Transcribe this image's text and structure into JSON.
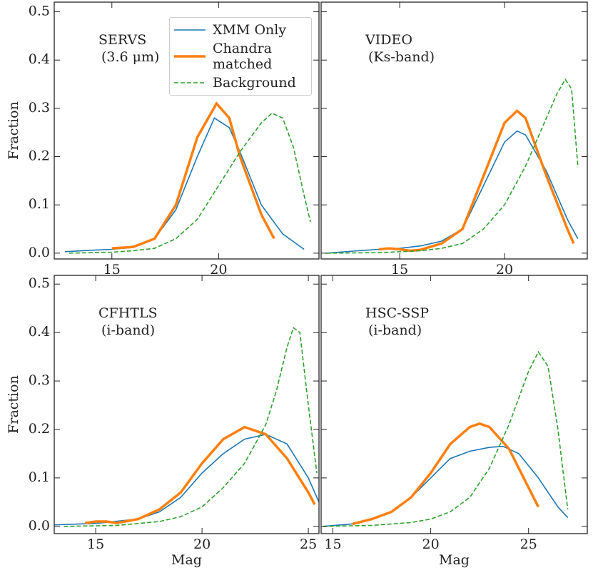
{
  "chart_data": [
    {
      "type": "line",
      "annotation": [
        "SERVS",
        "(3.6 μm)"
      ],
      "ylabel": "Fraction",
      "legend": "upper right",
      "xlim": [
        12.3,
        24.7
      ],
      "ylim": [
        -0.012,
        0.52
      ],
      "xticks": [
        15,
        20
      ],
      "yticks": [
        {
          "value": 0.0,
          "label": "0.0"
        },
        0.1,
        0.2,
        0.3,
        0.4,
        0.5
      ],
      "show_yticklabels": true,
      "series": [
        {
          "name": "XMM Only",
          "color": "#1f77b4",
          "linewidth": 1.6,
          "linestyle": "solid",
          "x": [
            12.8,
            14,
            15,
            16,
            17,
            18,
            19,
            19.8,
            20.5,
            21,
            22,
            23,
            24
          ],
          "values": [
            0.003,
            0.006,
            0.008,
            0.012,
            0.03,
            0.09,
            0.2,
            0.28,
            0.26,
            0.21,
            0.1,
            0.04,
            0.008
          ]
        },
        {
          "name": "Chandra matched",
          "color": "#ff7f0e",
          "linewidth": 3.5,
          "linestyle": "solid",
          "x": [
            15,
            16,
            17,
            18,
            19,
            19.9,
            20.5,
            21,
            22,
            22.6
          ],
          "values": [
            0.01,
            0.013,
            0.03,
            0.1,
            0.24,
            0.31,
            0.28,
            0.2,
            0.08,
            0.03
          ]
        },
        {
          "name": "Background",
          "color": "#2ca02c",
          "linewidth": 1.6,
          "linestyle": "dashed",
          "x": [
            13,
            15,
            16,
            17,
            18,
            19,
            20,
            21,
            22,
            22.5,
            23,
            23.5,
            24,
            24.3
          ],
          "values": [
            0,
            0.002,
            0.005,
            0.01,
            0.03,
            0.07,
            0.14,
            0.21,
            0.27,
            0.29,
            0.28,
            0.22,
            0.12,
            0.065
          ]
        }
      ]
    },
    {
      "type": "line",
      "annotation": [
        "VIDEO",
        "(Ks-band)"
      ],
      "xlim": [
        11.25,
        23.95
      ],
      "ylim": [
        -0.012,
        0.52
      ],
      "xticks": [
        15,
        20
      ],
      "yticks": [
        0,
        0.1,
        0.2,
        0.3,
        0.4,
        0.5
      ],
      "show_yticklabels": false,
      "series": [
        {
          "color": "#1f77b4",
          "linewidth": 1.6,
          "linestyle": "solid",
          "x": [
            11.5,
            13,
            14,
            15,
            16,
            17,
            18,
            19,
            20,
            20.6,
            21,
            22,
            23,
            23.5
          ],
          "values": [
            0,
            0.005,
            0.008,
            0.01,
            0.015,
            0.025,
            0.05,
            0.14,
            0.23,
            0.253,
            0.245,
            0.17,
            0.07,
            0.03
          ]
        },
        {
          "color": "#ff7f0e",
          "linewidth": 3.5,
          "linestyle": "solid",
          "x": [
            14,
            14.5,
            15,
            15.5,
            16,
            17,
            18,
            19,
            20,
            20.6,
            21,
            22,
            23,
            23.3
          ],
          "values": [
            0.008,
            0.01,
            0.008,
            0.005,
            0.007,
            0.02,
            0.05,
            0.16,
            0.27,
            0.295,
            0.28,
            0.16,
            0.05,
            0.02
          ]
        },
        {
          "color": "#2ca02c",
          "linewidth": 1.6,
          "linestyle": "dashed",
          "x": [
            11.5,
            14,
            16,
            17,
            18,
            19,
            20,
            21,
            22,
            22.5,
            22.9,
            23.2,
            23.5
          ],
          "values": [
            0,
            0.001,
            0.005,
            0.01,
            0.02,
            0.05,
            0.1,
            0.18,
            0.28,
            0.33,
            0.36,
            0.34,
            0.18
          ]
        }
      ]
    },
    {
      "type": "line",
      "annotation": [
        "CFHTLS",
        "(i-band)"
      ],
      "ylabel": "Fraction",
      "xlabel": "Mag",
      "xlim": [
        13.05,
        25.5
      ],
      "ylim": [
        -0.015,
        0.518
      ],
      "xticks": [
        15,
        20,
        25
      ],
      "yticks": [
        {
          "value": 0.0,
          "label": "0.0"
        },
        0.1,
        0.2,
        0.3,
        0.4,
        0.5
      ],
      "show_yticklabels": true,
      "series": [
        {
          "color": "#1f77b4",
          "linewidth": 1.6,
          "linestyle": "solid",
          "x": [
            13,
            15,
            17,
            18,
            19,
            20,
            21,
            22,
            23,
            24,
            25,
            25.5
          ],
          "values": [
            0.003,
            0.006,
            0.015,
            0.03,
            0.06,
            0.11,
            0.15,
            0.18,
            0.19,
            0.17,
            0.1,
            0.05
          ]
        },
        {
          "color": "#ff7f0e",
          "linewidth": 3.5,
          "linestyle": "solid",
          "x": [
            14.5,
            15,
            15.5,
            16,
            17,
            18,
            19,
            20,
            21,
            22,
            23,
            24,
            25,
            25.3
          ],
          "values": [
            0.007,
            0.01,
            0.01,
            0.007,
            0.015,
            0.035,
            0.07,
            0.13,
            0.18,
            0.205,
            0.19,
            0.14,
            0.07,
            0.045
          ]
        },
        {
          "color": "#2ca02c",
          "linewidth": 1.6,
          "linestyle": "dashed",
          "x": [
            13.5,
            16,
            18,
            19,
            20,
            21,
            22,
            23,
            23.5,
            24,
            24.3,
            24.6,
            25,
            25.4
          ],
          "values": [
            0,
            0.002,
            0.01,
            0.02,
            0.04,
            0.08,
            0.13,
            0.21,
            0.28,
            0.37,
            0.41,
            0.4,
            0.25,
            0.11
          ]
        }
      ]
    },
    {
      "type": "line",
      "annotation": [
        "HSC-SSP",
        "(i-band)"
      ],
      "xlabel": "Mag",
      "xlim": [
        14.4,
        28
      ],
      "ylim": [
        -0.015,
        0.518
      ],
      "xticks": [
        15,
        20,
        25
      ],
      "yticks": [
        0,
        0.1,
        0.2,
        0.3,
        0.4,
        0.5
      ],
      "show_yticklabels": false,
      "series": [
        {
          "color": "#1f77b4",
          "linewidth": 1.6,
          "linestyle": "solid",
          "x": [
            14.5,
            16,
            17,
            18,
            19,
            20,
            21,
            22,
            23,
            23.7,
            24.5,
            25.5,
            26.5,
            27
          ],
          "values": [
            0,
            0.005,
            0.015,
            0.03,
            0.06,
            0.1,
            0.14,
            0.155,
            0.163,
            0.165,
            0.15,
            0.1,
            0.04,
            0.018
          ]
        },
        {
          "color": "#ff7f0e",
          "linewidth": 3.5,
          "linestyle": "solid",
          "x": [
            16,
            17,
            18,
            19,
            20,
            21,
            22,
            22.5,
            23,
            24,
            25,
            25.5
          ],
          "values": [
            0.005,
            0.015,
            0.03,
            0.06,
            0.11,
            0.17,
            0.205,
            0.212,
            0.205,
            0.16,
            0.08,
            0.04
          ]
        },
        {
          "color": "#2ca02c",
          "linewidth": 1.6,
          "linestyle": "dashed",
          "x": [
            14.5,
            17,
            19,
            20,
            21,
            22,
            23,
            24,
            25,
            25.5,
            26,
            26.5,
            27
          ],
          "values": [
            0,
            0.002,
            0.008,
            0.015,
            0.03,
            0.06,
            0.12,
            0.21,
            0.32,
            0.36,
            0.33,
            0.2,
            0.035
          ]
        }
      ]
    }
  ]
}
